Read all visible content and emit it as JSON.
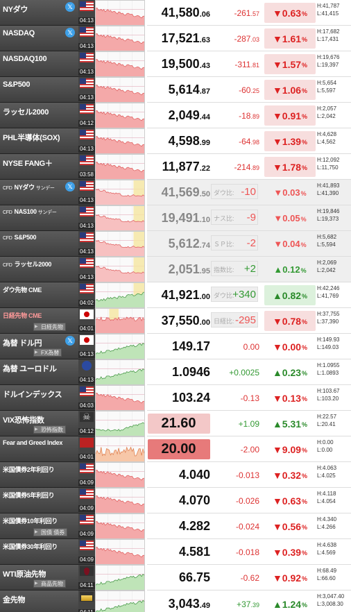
{
  "rows": [
    {
      "name": "NYダウ",
      "x": true,
      "flag": "us",
      "time": "04:13",
      "price_int": "41,580",
      "price_dec": ".06",
      "chg_int": "-261",
      "chg_dec": ".57",
      "chg_sign": "neg",
      "pct": "▼0.63",
      "pct_sign": "neg",
      "high": "H:41,787",
      "low": "L:41,415",
      "chart": "down"
    },
    {
      "name": "NASDAQ",
      "x": true,
      "flag": "us",
      "time": "04:13",
      "price_int": "17,521",
      "price_dec": ".63",
      "chg_int": "-287",
      "chg_dec": ".03",
      "chg_sign": "neg",
      "pct": "▼1.61",
      "pct_sign": "neg",
      "high": "H:17,682",
      "low": "L:17,431",
      "chart": "down"
    },
    {
      "name": "NASDAQ100",
      "flag": "us",
      "time": "04:13",
      "price_int": "19,500",
      "price_dec": ".43",
      "chg_int": "-311",
      "chg_dec": ".81",
      "chg_sign": "neg",
      "pct": "▼1.57",
      "pct_sign": "neg",
      "high": "H:19,676",
      "low": "L:19,397",
      "chart": "down"
    },
    {
      "name": "S&P500",
      "flag": "us",
      "time": "04:13",
      "price_int": "5,614",
      "price_dec": ".87",
      "chg_int": "-60",
      "chg_dec": ".25",
      "chg_sign": "neg",
      "pct": "▼1.06",
      "pct_sign": "neg",
      "high": "H:5,654",
      "low": "L:5,597",
      "chart": "down"
    },
    {
      "name": "ラッセル2000",
      "flag": "us",
      "time": "04:12",
      "price_int": "2,049",
      "price_dec": ".44",
      "chg_int": "-18",
      "chg_dec": ".89",
      "chg_sign": "neg",
      "pct": "▼0.91",
      "pct_sign": "neg",
      "high": "H:2,057",
      "low": "L:2,042",
      "chart": "down"
    },
    {
      "name": "PHL半導体(SOX)",
      "flag": "us",
      "time": "04:13",
      "price_int": "4,598",
      "price_dec": ".99",
      "chg_int": "-64",
      "chg_dec": ".98",
      "chg_sign": "neg",
      "pct": "▼1.39",
      "pct_sign": "neg",
      "high": "H:4,628",
      "low": "L:4,562",
      "chart": "down"
    },
    {
      "name": "NYSE FANG＋",
      "flag": "us",
      "time": "03:58",
      "price_int": "11,877",
      "price_dec": ".22",
      "chg_int": "-214",
      "chg_dec": ".89",
      "chg_sign": "neg",
      "pct": "▼1.78",
      "pct_sign": "neg",
      "high": "H:12,092",
      "low": "L:11,750",
      "chart": "down"
    },
    {
      "cfd": true,
      "name": "NYダウ",
      "sub_suffix": "サンデー",
      "x": true,
      "flag": "us",
      "time": "04:13",
      "price_int": "41,569",
      "price_dec": ".50",
      "tag_lbl": "ダウ比:",
      "tag_val": "-10",
      "tag_sign": "neg",
      "pct": "▼0.03",
      "pct_sign": "light-neg",
      "high": "H:41,893",
      "low": "L:41,390",
      "chart": "cfd-down"
    },
    {
      "cfd": true,
      "name": "NAS100",
      "sub_suffix": "サンデー",
      "flag": "us",
      "time": "04:13",
      "price_int": "19,491",
      "price_dec": ".10",
      "tag_lbl": "ナス比:",
      "tag_val": "-9",
      "tag_sign": "neg",
      "pct": "▼0.05",
      "pct_sign": "light-neg",
      "high": "H:19,846",
      "low": "L:19,373",
      "chart": "cfd-down"
    },
    {
      "cfd": true,
      "name": "S&P500",
      "flag": "us",
      "time": "04:13",
      "price_int": "5,612",
      "price_dec": ".74",
      "tag_lbl": "ＳＰ比:",
      "tag_val": "-2",
      "tag_sign": "neg",
      "pct": "▼0.04",
      "pct_sign": "light-neg",
      "high": "H:5,682",
      "low": "L:5,594",
      "chart": "cfd-down"
    },
    {
      "cfd": true,
      "name": "ラッセル2000",
      "flag": "us",
      "time": "04:13",
      "price_int": "2,051",
      "price_dec": ".95",
      "tag_lbl": "指数比:",
      "tag_val": "+2",
      "tag_sign": "pos",
      "pct": "▲0.12",
      "pct_sign": "light-pos",
      "high": "H:2,069",
      "low": "L:2,042",
      "chart": "cfd-down"
    },
    {
      "name": "ダウ先物 CME",
      "small": true,
      "flag": "us",
      "time": "04:02",
      "price_int": "41,921",
      "price_dec": ".00",
      "tag_lbl": "ダウ比:",
      "tag_val": "+340",
      "tag_sign": "pos",
      "pct": "▲0.82",
      "pct_sign": "pos",
      "high": "H:42,246",
      "low": "L:41,769",
      "chart": "up-y",
      "white": true
    },
    {
      "name": "日経先物 CME",
      "small": true,
      "red_name": true,
      "sub": "日経先物",
      "flag": "jp",
      "time": "04:01",
      "price_int": "37,550",
      "price_dec": ".00",
      "tag_lbl": "日経比:",
      "tag_val": "-295",
      "tag_sign": "neg",
      "pct": "▼0.78",
      "pct_sign": "neg",
      "high": "H:37,755",
      "low": "L:37,390",
      "chart": "nk",
      "white": true
    },
    {
      "name": "為替 ドル円",
      "x": true,
      "sub": "FX為替",
      "flag": "jp",
      "time": "04:13",
      "price_int": "149.17",
      "price_dec": "",
      "chg_int": "0.00",
      "chg_dec": "",
      "chg_sign": "neg",
      "pct": "▼0.00",
      "pct_sign": "plain-neg",
      "high": "H:149.93",
      "low": "L:149.03",
      "chart": "up"
    },
    {
      "name": "為替 ユーロドル",
      "flag": "eu",
      "time": "04:13",
      "price_int": "1.0946",
      "price_dec": "",
      "chg_int": "+0.0025",
      "chg_dec": "",
      "chg_sign": "pos",
      "pct": "▲0.23",
      "pct_sign": "plain-pos",
      "high": "H:1.0955",
      "low": "L:1.0893",
      "chart": "up"
    },
    {
      "name": "ドルインデックス",
      "flag": "us",
      "time": "04:03",
      "price_int": "103.24",
      "price_dec": "",
      "chg_int": "-0.13",
      "chg_dec": "",
      "chg_sign": "neg",
      "pct": "▼0.13",
      "pct_sign": "plain-neg",
      "high": "H:103.67",
      "low": "L:103.20",
      "chart": "down"
    },
    {
      "name": "VIX恐怖指数",
      "sub": "恐怖指数",
      "flag": "ghost",
      "time": "04:12",
      "price_int": "21.60",
      "price_dec": "",
      "boxed": "light",
      "chg_int": "+1.09",
      "chg_dec": "",
      "chg_sign": "pos",
      "pct": "▲5.31",
      "pct_sign": "plain-pos",
      "high": "H:22.57",
      "low": "L:20.41",
      "chart": "vix"
    },
    {
      "name": "Fear and Greed Index",
      "tiny": true,
      "flag": "fg",
      "time": "04:01",
      "price_int": "20.00",
      "price_dec": "",
      "boxed": "strong",
      "chg_int": "-2.00",
      "chg_dec": "",
      "chg_sign": "neg",
      "pct": "▼9.09",
      "pct_sign": "plain-neg",
      "high": "H:0.00",
      "low": "L:0.00",
      "chart": "fg"
    },
    {
      "name": "米国債券2年利回り",
      "small": true,
      "flag": "us",
      "time": "04:09",
      "price_int": "4.040",
      "price_dec": "",
      "chg_int": "-0.013",
      "chg_dec": "",
      "chg_sign": "neg",
      "pct": "▼0.32",
      "pct_sign": "plain-neg",
      "high": "H:4.063",
      "low": "L:4.025",
      "chart": "bond"
    },
    {
      "name": "米国債券5年利回り",
      "small": true,
      "flag": "us",
      "time": "04:09",
      "price_int": "4.070",
      "price_dec": "",
      "chg_int": "-0.026",
      "chg_dec": "",
      "chg_sign": "neg",
      "pct": "▼0.63",
      "pct_sign": "plain-neg",
      "high": "H:4.118",
      "low": "L:4.054",
      "chart": "bond"
    },
    {
      "name": "米国債券10年利回り",
      "small": true,
      "sub": "国債 債券",
      "flag": "us",
      "time": "04:09",
      "price_int": "4.282",
      "price_dec": "",
      "chg_int": "-0.024",
      "chg_dec": "",
      "chg_sign": "neg",
      "pct": "▼0.56",
      "pct_sign": "plain-neg",
      "high": "H:4.340",
      "low": "L:4.266",
      "chart": "bond"
    },
    {
      "name": "米国債券30年利回り",
      "small": true,
      "flag": "us",
      "time": "04:09",
      "price_int": "4.581",
      "price_dec": "",
      "chg_int": "-0.018",
      "chg_dec": "",
      "chg_sign": "neg",
      "pct": "▼0.39",
      "pct_sign": "plain-neg",
      "high": "H:4.638",
      "low": "L:4.569",
      "chart": "bond"
    },
    {
      "name": "WTI原油先物",
      "sub": "商品先物",
      "flag": "oil",
      "time": "04:11",
      "price_int": "66.75",
      "price_dec": "",
      "chg_int": "-0.62",
      "chg_dec": "",
      "chg_sign": "neg",
      "pct": "▼0.92",
      "pct_sign": "plain-neg",
      "high": "H:68.49",
      "low": "L:66.60",
      "chart": "up"
    },
    {
      "name": "金先物",
      "flag": "gold",
      "time": "04:11",
      "price_int": "3,043",
      "price_dec": ".49",
      "chg_int": "+37",
      "chg_dec": ".39",
      "chg_sign": "pos",
      "pct": "▲1.24",
      "pct_sign": "plain-pos",
      "high": "H:3,047.40",
      "low": "L:3,008.30",
      "chart": "up"
    }
  ],
  "colors": {
    "neg": "#d22",
    "pos": "#2a8a2a",
    "accent_x": "#3ea0e8"
  }
}
